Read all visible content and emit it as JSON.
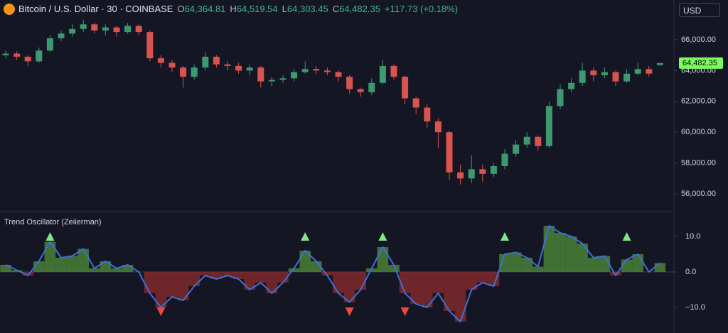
{
  "header": {
    "symbol": "Bitcoin / U.S. Dollar · 30 · COINBASE",
    "ohlc": [
      {
        "key": "O",
        "value": "64,364.81"
      },
      {
        "key": "H",
        "value": "64,519.54"
      },
      {
        "key": "L",
        "value": "64,303.45"
      },
      {
        "key": "C",
        "value": "64,482.35"
      }
    ],
    "change": "+117.73 (+0.18%)",
    "currency": "USD"
  },
  "chart_data": [
    {
      "type": "candlestick",
      "up_color": "#3d9970",
      "down_color": "#d9534f",
      "last_price_label": "64,482.35",
      "last_price_color": "#7cfc5c",
      "ylim": [
        54850,
        68580
      ],
      "yticks": [
        {
          "value": 56000,
          "label": "56,000.00"
        },
        {
          "value": 58000,
          "label": "58,000.00"
        },
        {
          "value": 60000,
          "label": "60,000.00"
        },
        {
          "value": 62000,
          "label": "62,000.00"
        },
        {
          "value": 64000,
          "label": "64,000.00"
        },
        {
          "value": 66000,
          "label": "66,000.00"
        }
      ],
      "open": [
        65000,
        65100,
        64900,
        64600,
        65300,
        66100,
        66400,
        66700,
        67000,
        66600,
        66800,
        66500,
        66900,
        66500,
        64800,
        64500,
        64200,
        63600,
        64200,
        64900,
        64400,
        64300,
        64000,
        64200,
        63300,
        63400,
        63500,
        63900,
        64100,
        64000,
        63900,
        63600,
        62800,
        62600,
        63200,
        64300,
        63600,
        62200,
        61600,
        60700,
        60000,
        57400,
        57000,
        57600,
        57300,
        57800,
        58600,
        59200,
        59700,
        59100,
        61700,
        62800,
        63200,
        64000,
        63700,
        63900,
        63300,
        63800,
        64100,
        64364.81
      ],
      "high": [
        65300,
        65250,
        65000,
        65500,
        66300,
        66600,
        67000,
        67300,
        67100,
        67000,
        66900,
        67100,
        67000,
        66600,
        65000,
        64700,
        64300,
        64400,
        65200,
        65000,
        64600,
        64500,
        64400,
        64300,
        63600,
        63700,
        64100,
        64600,
        64300,
        64200,
        64000,
        63700,
        62900,
        63500,
        64700,
        64400,
        63700,
        62300,
        61800,
        60900,
        60100,
        57900,
        58500,
        57900,
        58000,
        58900,
        59500,
        60000,
        59800,
        62000,
        63100,
        63500,
        64500,
        64200,
        64200,
        64000,
        64100,
        64500,
        64300,
        64519.54
      ],
      "low": [
        64800,
        64700,
        64300,
        64500,
        65200,
        65900,
        66200,
        66500,
        66400,
        66300,
        66200,
        66400,
        66300,
        64600,
        64200,
        63900,
        62900,
        63400,
        64000,
        64200,
        64000,
        63800,
        63700,
        62900,
        63000,
        63200,
        63300,
        63800,
        63800,
        63700,
        63300,
        62500,
        62300,
        62400,
        63100,
        63400,
        61800,
        61200,
        60300,
        59000,
        56900,
        56600,
        56700,
        56800,
        57100,
        57600,
        58400,
        59000,
        58800,
        59000,
        61500,
        62600,
        63000,
        63300,
        63500,
        63000,
        63200,
        63700,
        63600,
        64303.45
      ],
      "close": [
        65100,
        64900,
        64600,
        65300,
        66100,
        66400,
        66700,
        67000,
        66600,
        66800,
        66500,
        66900,
        66500,
        64800,
        64500,
        64200,
        63600,
        64200,
        64900,
        64400,
        64300,
        64000,
        64200,
        63300,
        63400,
        63500,
        63900,
        64100,
        64000,
        63900,
        63600,
        62800,
        62600,
        63200,
        64300,
        63600,
        62200,
        61600,
        60700,
        60000,
        57400,
        57000,
        57600,
        57300,
        57800,
        58600,
        59200,
        59700,
        59100,
        61700,
        62800,
        63200,
        64000,
        63700,
        63900,
        63300,
        63800,
        64100,
        63800,
        64482.35
      ]
    },
    {
      "type": "oscillator",
      "title": "Trend Oscillator (Zeiierman)",
      "line_color": "#3f6fd8",
      "positive_color": "#4f8f3a",
      "negative_color": "#8e2c2c",
      "signal_up_color": "#7ee787",
      "signal_down_color": "#f0483e",
      "ylim": [
        -17.2,
        16.6
      ],
      "yticks": [
        {
          "value": 10,
          "label": "10.0"
        },
        {
          "value": 0,
          "label": "0.0"
        },
        {
          "value": -10,
          "label": "−10.0"
        }
      ],
      "values": [
        2,
        0.5,
        -1,
        3,
        8.5,
        4,
        4.5,
        6.5,
        1,
        3,
        1,
        2,
        0,
        -6,
        -10,
        -7,
        -8,
        -4,
        -1,
        -2,
        -1,
        -2,
        -5,
        -3,
        -6,
        -3,
        1,
        6,
        3,
        -1,
        -6,
        -8.5,
        -5,
        1,
        7,
        2,
        -6,
        -9,
        -10,
        -6,
        -11,
        -14,
        -5,
        -3,
        -4,
        5,
        5.5,
        4,
        1.5,
        13,
        11,
        10,
        8,
        4,
        4.5,
        -1,
        3.5,
        5,
        0,
        2.5
      ],
      "buy_signals": [
        4,
        27,
        34,
        45,
        56
      ],
      "sell_signals": [
        14,
        31,
        36
      ]
    }
  ]
}
